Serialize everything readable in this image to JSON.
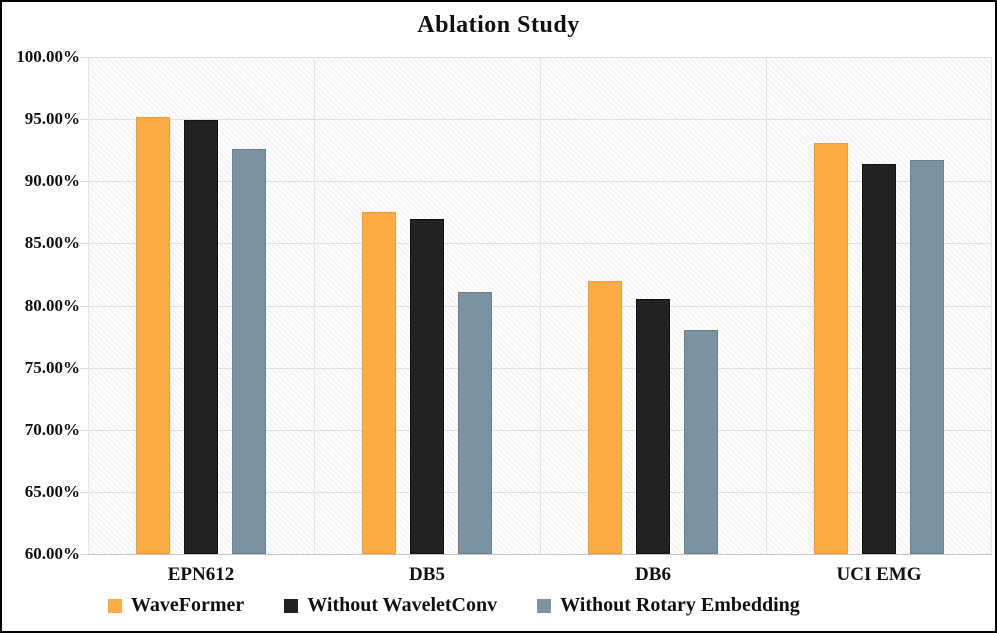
{
  "chart_data": {
    "type": "bar",
    "title": "Ablation Study",
    "categories": [
      "EPN612",
      "DB5",
      "DB6",
      "UCI EMG"
    ],
    "series": [
      {
        "name": "WaveFormer",
        "color": "#FCAB45",
        "border_color": "#F09A35",
        "values": [
          95.2,
          87.5,
          82.0,
          93.1
        ]
      },
      {
        "name": "Without WaveletConv",
        "color": "#222222",
        "border_color": "#111111",
        "values": [
          94.9,
          87.0,
          80.5,
          91.4
        ]
      },
      {
        "name": "Without Rotary Embedding",
        "color": "#7B93A0",
        "border_color": "#65818F",
        "values": [
          92.6,
          81.1,
          78.0,
          91.7
        ]
      }
    ],
    "xlabel": "",
    "ylabel": "",
    "ylim": [
      60,
      100
    ],
    "ytick_step": 5,
    "yticks": [
      "100.00%",
      "95.00%",
      "90.00%",
      "85.00%",
      "80.00%",
      "75.00%",
      "70.00%",
      "65.00%",
      "60.00%"
    ],
    "grid": true,
    "legend_position": "bottom"
  }
}
